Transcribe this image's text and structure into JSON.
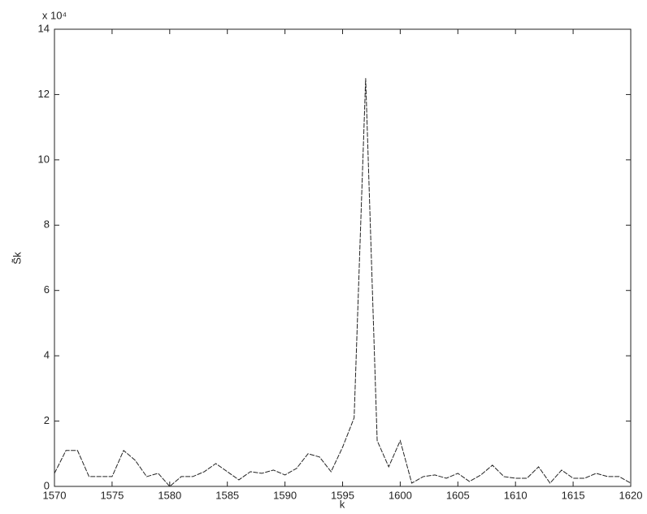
{
  "chart_data": {
    "type": "line",
    "xlabel": "k",
    "ylabel": "S̃k",
    "y_multiplier": "x 10⁴",
    "x": [
      1570,
      1571,
      1572,
      1573,
      1574,
      1575,
      1576,
      1577,
      1578,
      1579,
      1580,
      1581,
      1582,
      1583,
      1584,
      1585,
      1586,
      1587,
      1588,
      1589,
      1590,
      1591,
      1592,
      1593,
      1594,
      1595,
      1596,
      1597,
      1598,
      1599,
      1600,
      1601,
      1602,
      1603,
      1604,
      1605,
      1606,
      1607,
      1608,
      1609,
      1610,
      1611,
      1612,
      1613,
      1614,
      1615,
      1616,
      1617,
      1618,
      1619,
      1620
    ],
    "values": [
      0.4,
      1.1,
      1.1,
      0.3,
      0.3,
      0.3,
      1.1,
      0.8,
      0.3,
      0.4,
      0.0,
      0.3,
      0.3,
      0.45,
      0.7,
      0.45,
      0.2,
      0.45,
      0.4,
      0.5,
      0.35,
      0.55,
      1.0,
      0.9,
      0.45,
      1.2,
      2.1,
      12.5,
      1.4,
      0.6,
      1.4,
      0.1,
      0.3,
      0.35,
      0.25,
      0.4,
      0.15,
      0.35,
      0.65,
      0.3,
      0.25,
      0.25,
      0.6,
      0.1,
      0.5,
      0.25,
      0.25,
      0.4,
      0.3,
      0.3,
      0.1
    ],
    "color": "#222222",
    "xlim": [
      1570,
      1620
    ],
    "xticks": [
      1570,
      1575,
      1580,
      1585,
      1590,
      1595,
      1600,
      1605,
      1610,
      1615,
      1620
    ],
    "ylim": [
      0,
      14
    ],
    "yticks": [
      0,
      2,
      4,
      6,
      8,
      10,
      12,
      14
    ],
    "grid": false
  }
}
